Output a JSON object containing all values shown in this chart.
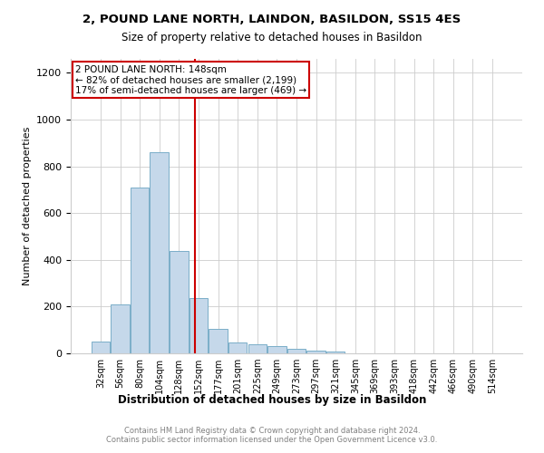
{
  "title_line1": "2, POUND LANE NORTH, LAINDON, BASILDON, SS15 4ES",
  "title_line2": "Size of property relative to detached houses in Basildon",
  "xlabel": "Distribution of detached houses by size in Basildon",
  "ylabel": "Number of detached properties",
  "categories": [
    "32sqm",
    "56sqm",
    "80sqm",
    "104sqm",
    "128sqm",
    "152sqm",
    "177sqm",
    "201sqm",
    "225sqm",
    "249sqm",
    "273sqm",
    "297sqm",
    "321sqm",
    "345sqm",
    "369sqm",
    "393sqm",
    "418sqm",
    "442sqm",
    "466sqm",
    "490sqm",
    "514sqm"
  ],
  "values": [
    50,
    210,
    710,
    860,
    440,
    235,
    105,
    48,
    40,
    32,
    20,
    10,
    8,
    0,
    0,
    0,
    0,
    0,
    0,
    0,
    0
  ],
  "bar_color": "#c5d8ea",
  "bar_edgecolor": "#7aaec8",
  "vline_x": 4.83,
  "vline_color": "#cc0000",
  "ylim": [
    0,
    1260
  ],
  "yticks": [
    0,
    200,
    400,
    600,
    800,
    1000,
    1200
  ],
  "annotation_text": "2 POUND LANE NORTH: 148sqm\n← 82% of detached houses are smaller (2,199)\n17% of semi-detached houses are larger (469) →",
  "annotation_box_color": "#ffffff",
  "annotation_box_edgecolor": "#cc0000",
  "footnote": "Contains HM Land Registry data © Crown copyright and database right 2024.\nContains public sector information licensed under the Open Government Licence v3.0.",
  "background_color": "#ffffff",
  "grid_color": "#cccccc"
}
